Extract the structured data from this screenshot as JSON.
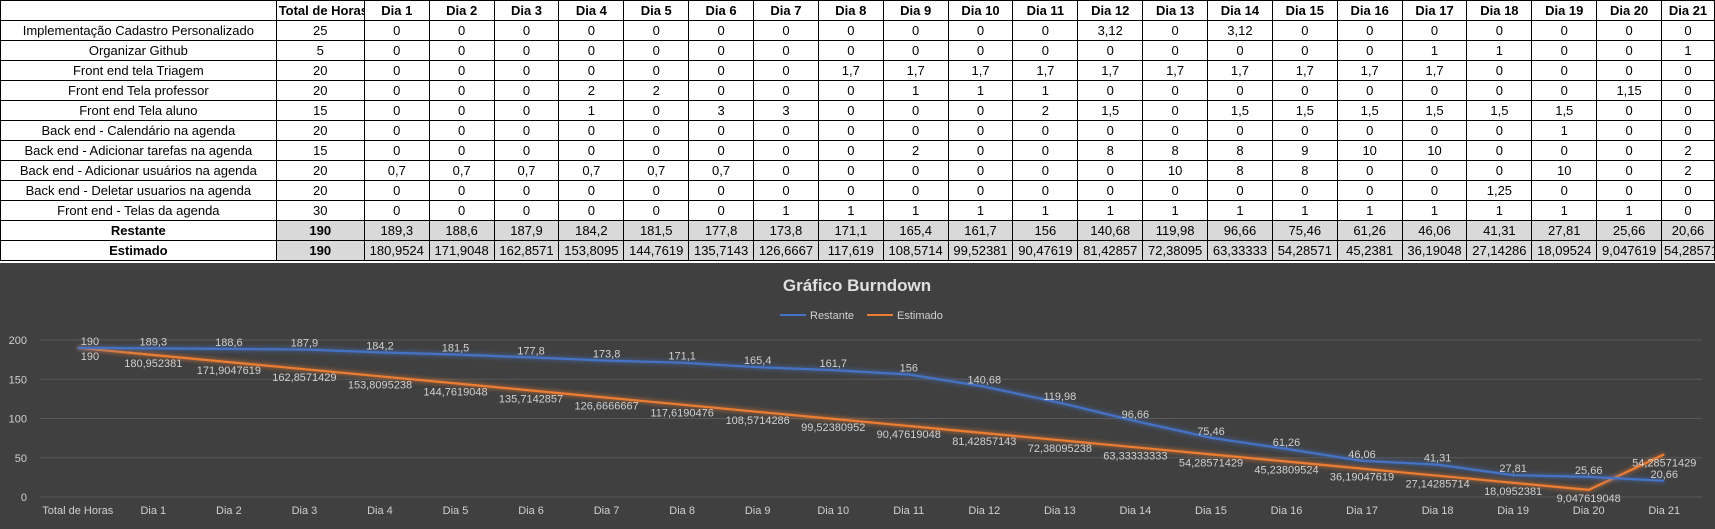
{
  "table": {
    "header": [
      "",
      "Total de Horas",
      "Dia 1",
      "Dia 2",
      "Dia 3",
      "Dia 4",
      "Dia 5",
      "Dia 6",
      "Dia 7",
      "Dia 8",
      "Dia 9",
      "Dia 10",
      "Dia 11",
      "Dia 12",
      "Dia 13",
      "Dia 14",
      "Dia 15",
      "Dia 16",
      "Dia 17",
      "Dia 18",
      "Dia 19",
      "Dia 20",
      "Dia 21"
    ],
    "rows": [
      [
        "Implementação Cadastro Personalizado",
        "25",
        "0",
        "0",
        "0",
        "0",
        "0",
        "0",
        "0",
        "0",
        "0",
        "0",
        "0",
        "3,12",
        "0",
        "3,12",
        "0",
        "0",
        "0",
        "0",
        "0",
        "0",
        "0"
      ],
      [
        "Organizar Github",
        "5",
        "0",
        "0",
        "0",
        "0",
        "0",
        "0",
        "0",
        "0",
        "0",
        "0",
        "0",
        "0",
        "0",
        "0",
        "0",
        "0",
        "1",
        "1",
        "0",
        "0",
        "1"
      ],
      [
        "Front end tela Triagem",
        "20",
        "0",
        "0",
        "0",
        "0",
        "0",
        "0",
        "0",
        "1,7",
        "1,7",
        "1,7",
        "1,7",
        "1,7",
        "1,7",
        "1,7",
        "1,7",
        "1,7",
        "1,7",
        "0",
        "0",
        "0",
        "0"
      ],
      [
        "Front end Tela professor",
        "20",
        "0",
        "0",
        "0",
        "2",
        "2",
        "0",
        "0",
        "0",
        "1",
        "1",
        "1",
        "0",
        "0",
        "0",
        "0",
        "0",
        "0",
        "0",
        "0",
        "1,15",
        "0"
      ],
      [
        "Front end Tela aluno",
        "15",
        "0",
        "0",
        "0",
        "1",
        "0",
        "3",
        "3",
        "0",
        "0",
        "0",
        "2",
        "1,5",
        "0",
        "1,5",
        "1,5",
        "1,5",
        "1,5",
        "1,5",
        "1,5",
        "0",
        "0"
      ],
      [
        "Back end - Calendário na agenda",
        "20",
        "0",
        "0",
        "0",
        "0",
        "0",
        "0",
        "0",
        "0",
        "0",
        "0",
        "0",
        "0",
        "0",
        "0",
        "0",
        "0",
        "0",
        "0",
        "1",
        "0",
        "0"
      ],
      [
        "Back end - Adicionar tarefas na agenda",
        "15",
        "0",
        "0",
        "0",
        "0",
        "0",
        "0",
        "0",
        "0",
        "2",
        "0",
        "0",
        "8",
        "8",
        "8",
        "9",
        "10",
        "10",
        "0",
        "0",
        "0",
        "2"
      ],
      [
        "Back end - Adicionar usuários na agenda",
        "20",
        "0,7",
        "0,7",
        "0,7",
        "0,7",
        "0,7",
        "0,7",
        "0",
        "0",
        "0",
        "0",
        "0",
        "0",
        "10",
        "8",
        "8",
        "0",
        "0",
        "0",
        "10",
        "0",
        "2"
      ],
      [
        "Back end - Deletar usuarios na agenda",
        "20",
        "0",
        "0",
        "0",
        "0",
        "0",
        "0",
        "0",
        "0",
        "0",
        "0",
        "0",
        "0",
        "0",
        "0",
        "0",
        "0",
        "0",
        "1,25",
        "0",
        "0",
        "0"
      ],
      [
        "Front end - Telas da agenda",
        "30",
        "0",
        "0",
        "0",
        "0",
        "0",
        "0",
        "1",
        "1",
        "1",
        "1",
        "1",
        "1",
        "1",
        "1",
        "1",
        "1",
        "1",
        "1",
        "1",
        "1",
        "0"
      ]
    ],
    "restante": [
      "Restante",
      "190",
      "189,3",
      "188,6",
      "187,9",
      "184,2",
      "181,5",
      "177,8",
      "173,8",
      "171,1",
      "165,4",
      "161,7",
      "156",
      "140,68",
      "119,98",
      "96,66",
      "75,46",
      "61,26",
      "46,06",
      "41,31",
      "27,81",
      "25,66",
      "20,66"
    ],
    "estimado": [
      "Estimado",
      "190",
      "180,9524",
      "171,9048",
      "162,8571",
      "153,8095",
      "144,7619",
      "135,7143",
      "126,6667",
      "117,619",
      "108,5714",
      "99,52381",
      "90,47619",
      "81,42857",
      "72,38095",
      "63,33333",
      "54,28571",
      "45,2381",
      "36,19048",
      "27,14286",
      "18,09524",
      "9,047619",
      "54,28571"
    ]
  },
  "chart_data": {
    "type": "line",
    "title": "Gráfico Burndown",
    "categories": [
      "Total de Horas",
      "Dia 1",
      "Dia 2",
      "Dia 3",
      "Dia 4",
      "Dia 5",
      "Dia 6",
      "Dia 7",
      "Dia 8",
      "Dia 9",
      "Dia 10",
      "Dia 11",
      "Dia 12",
      "Dia 13",
      "Dia 14",
      "Dia 15",
      "Dia 16",
      "Dia 17",
      "Dia 18",
      "Dia 19",
      "Dia 20",
      "Dia 21"
    ],
    "series": [
      {
        "name": "Restante",
        "color": "#4472c4",
        "values": [
          190,
          189.3,
          188.6,
          187.9,
          184.2,
          181.5,
          177.8,
          173.8,
          171.1,
          165.4,
          161.7,
          156,
          140.68,
          119.98,
          96.66,
          75.46,
          61.26,
          46.06,
          41.31,
          27.81,
          25.66,
          20.66
        ],
        "labels": [
          "190",
          "189,3",
          "188,6",
          "187,9",
          "184,2",
          "181,5",
          "177,8",
          "173,8",
          "171,1",
          "165,4",
          "161,7",
          "156",
          "140,68",
          "119,98",
          "96,66",
          "75,46",
          "61,26",
          "46,06",
          "41,31",
          "27,81",
          "25,66",
          "20,66"
        ]
      },
      {
        "name": "Estimado",
        "color": "#ed7d31",
        "values": [
          190,
          180.952381,
          171.9047619,
          162.8571429,
          153.8095238,
          144.7619048,
          135.7142857,
          126.6666667,
          117.6190476,
          108.5714286,
          99.52380952,
          90.47619048,
          81.42857143,
          72.38095238,
          63.33333333,
          54.28571429,
          45.23809524,
          36.19047619,
          27.14285714,
          18.0952381,
          9.047619048,
          54.28571429
        ],
        "labels": [
          "190",
          "180,952381",
          "171,9047619",
          "162,8571429",
          "153,8095238",
          "144,7619048",
          "135,7142857",
          "126,6666667",
          "117,6190476",
          "108,5714286",
          "99,52380952",
          "90,47619048",
          "81,42857143",
          "72,38095238",
          "63,33333333",
          "54,28571429",
          "45,23809524",
          "36,19047619",
          "27,14285714",
          "18,0952381",
          "9,047619048",
          "54,28571429"
        ]
      }
    ],
    "ylim": [
      0,
      200
    ],
    "yticks": [
      "0",
      "50",
      "100",
      "150",
      "200"
    ],
    "grid": true,
    "legend": "top-center",
    "background": "#404040"
  }
}
